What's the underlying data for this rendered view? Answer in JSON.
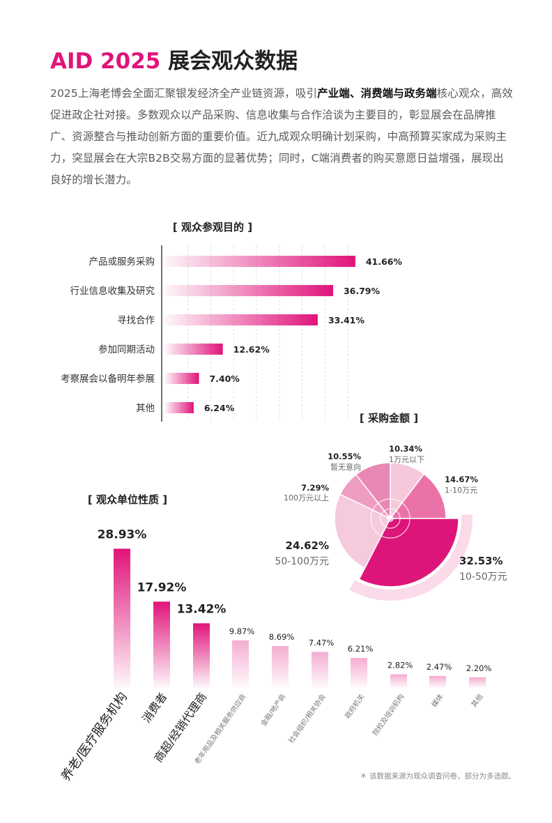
{
  "title": {
    "accent": "AID 2025",
    "rest": "展会观众数据"
  },
  "intro": {
    "part1": "2025上海老博会全面汇聚银发经济全产业链资源，吸引",
    "highlight": "产业端、消费端与政务端",
    "part2": "核心观众，高效促进政企社对接。多数观众以产品采购、信息收集与合作洽谈为主要目的，彰显展会在品牌推广、资源整合与推动创新方面的重要价值。近九成观众明确计划采购，中高预算买家成为采购主力，突显展会在大宗B2B交易方面的显著优势；同时，C端消费者的购买意愿日益增强，展现出良好的增长潜力。"
  },
  "colors": {
    "accent": "#e0147a",
    "mid": "#ec7fb2",
    "light": "#f7d2e4"
  },
  "chart_data": [
    {
      "type": "bar",
      "orientation": "horizontal",
      "title": "[ 观众参观目的 ]",
      "categories": [
        "产品或服务采购",
        "行业信息收集及研究",
        "寻找合作",
        "参加同期活动",
        "考察展会以备明年参展",
        "其他"
      ],
      "values": [
        41.66,
        36.79,
        33.41,
        12.62,
        7.4,
        6.24
      ],
      "value_labels": [
        "41.66%",
        "36.79%",
        "33.41%",
        "12.62%",
        "7.40%",
        "6.24%"
      ],
      "xlim": [
        0,
        50
      ],
      "grid": true
    },
    {
      "type": "pie",
      "title": "[ 采购金额 ]",
      "slices": [
        {
          "label": "1万元以下",
          "value": 10.34,
          "pct": "10.34%",
          "color": "#f6c8dc"
        },
        {
          "label": "1-10万元",
          "value": 14.67,
          "pct": "14.67%",
          "color": "#ea72a8"
        },
        {
          "label": "10-50万元",
          "value": 32.53,
          "pct": "32.53%",
          "color": "#dd157a"
        },
        {
          "label": "50-100万元",
          "value": 24.62,
          "pct": "24.62%",
          "color": "#f5cadd"
        },
        {
          "label": "100万元以上",
          "value": 7.29,
          "pct": "7.29%",
          "color": "#ef9cc3"
        },
        {
          "label": "暂无意向",
          "value": 10.55,
          "pct": "10.55%",
          "color": "#e987b5"
        }
      ]
    },
    {
      "type": "bar",
      "orientation": "vertical",
      "title": "[ 观众单位性质 ]",
      "categories": [
        "养老/医疗服务机构",
        "消费者",
        "商超/经销代理商",
        "老年用品及相关服务供应商",
        "金融/地产商",
        "社会组织/相关协会",
        "政府机关",
        "院校及培训机构",
        "媒体",
        "其他"
      ],
      "values": [
        28.93,
        17.92,
        13.42,
        9.87,
        8.69,
        7.47,
        6.21,
        2.82,
        2.47,
        2.2
      ],
      "value_labels": [
        "28.93%",
        "17.92%",
        "13.42%",
        "9.87%",
        "8.69%",
        "7.47%",
        "6.21%",
        "2.82%",
        "2.47%",
        "2.20%"
      ],
      "ylim": [
        0,
        30
      ]
    }
  ],
  "footnote": "＊ 该数据来源为观众调查问卷，部分为多选题。"
}
